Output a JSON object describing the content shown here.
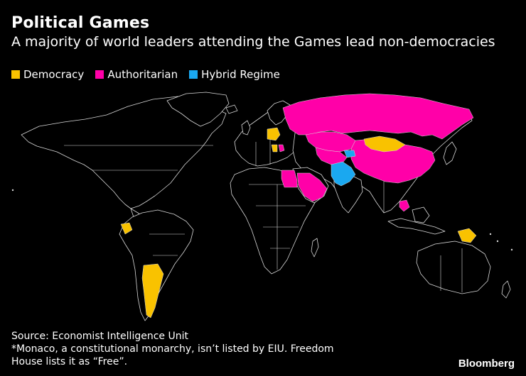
{
  "title": "Political Games",
  "subtitle": "A majority of world leaders attending the Games lead non-democracies",
  "legend": [
    {
      "label": "Democracy",
      "color": "#f9c200"
    },
    {
      "label": "Authoritarian",
      "color": "#ff00a8"
    },
    {
      "label": "Hybrid Regime",
      "color": "#1aa8f0"
    }
  ],
  "source": {
    "line1": "Source: Economist Intelligence Unit",
    "line2": "*Monaco, a constitutional monarchy, isn’t listed by EIU. Freedom House lists it as “Free”."
  },
  "brand": "Bloomberg",
  "colors": {
    "background": "#000000",
    "outline": "#d9d9d9"
  }
}
